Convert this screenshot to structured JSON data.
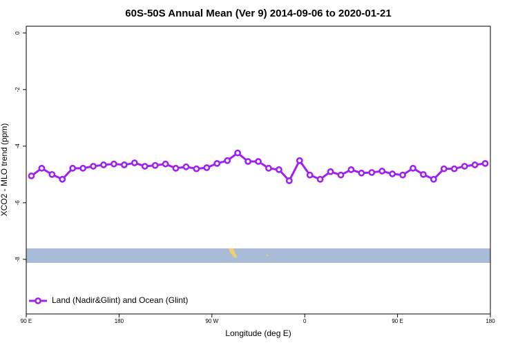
{
  "chart_data": {
    "type": "line",
    "title": "60S-50S Annual Mean (Ver 9)   2014-09-06 to 2020-01-21",
    "xlabel": "Longitude (deg E)",
    "ylabel": "XCO2 - MLO trend (ppm)",
    "xlim": [
      90,
      540
    ],
    "ylim": [
      -9.93,
      0.24
    ],
    "xticks": [
      {
        "value": 90,
        "label": "90 E"
      },
      180,
      {
        "value": 270,
        "label": "90 W"
      },
      {
        "value": 360,
        "label": "0"
      },
      {
        "value": 450,
        "label": "90 E"
      },
      {
        "value": 540,
        "label": "180"
      }
    ],
    "yticks": [
      0,
      -2,
      -4,
      -6,
      -8
    ],
    "legend": "bottom-left",
    "x": [
      95,
      105,
      115,
      125,
      135,
      145,
      155,
      165,
      175,
      185,
      195,
      205,
      215,
      225,
      235,
      245,
      255,
      265,
      275,
      285,
      295,
      305,
      315,
      325,
      335,
      345,
      355,
      365,
      375,
      385,
      395,
      405,
      415,
      425,
      435,
      445,
      455,
      465,
      475,
      485,
      495,
      505,
      515,
      525,
      535
    ],
    "series": [
      {
        "name": "Land (Nadir&Glint) and Ocean (Glint)",
        "color": "#a020f0",
        "values": [
          -5.05,
          -4.78,
          -5.0,
          -5.17,
          -4.78,
          -4.78,
          -4.71,
          -4.66,
          -4.63,
          -4.66,
          -4.59,
          -4.71,
          -4.68,
          -4.63,
          -4.78,
          -4.73,
          -4.8,
          -4.76,
          -4.61,
          -4.51,
          -4.24,
          -4.54,
          -4.54,
          -4.78,
          -4.83,
          -5.22,
          -4.51,
          -5.02,
          -5.17,
          -4.9,
          -5.02,
          -4.83,
          -4.95,
          -4.93,
          -4.88,
          -4.98,
          -5.02,
          -4.78,
          -5.0,
          -5.17,
          -4.8,
          -4.8,
          -4.71,
          -4.66,
          -4.61
        ]
      }
    ]
  }
}
